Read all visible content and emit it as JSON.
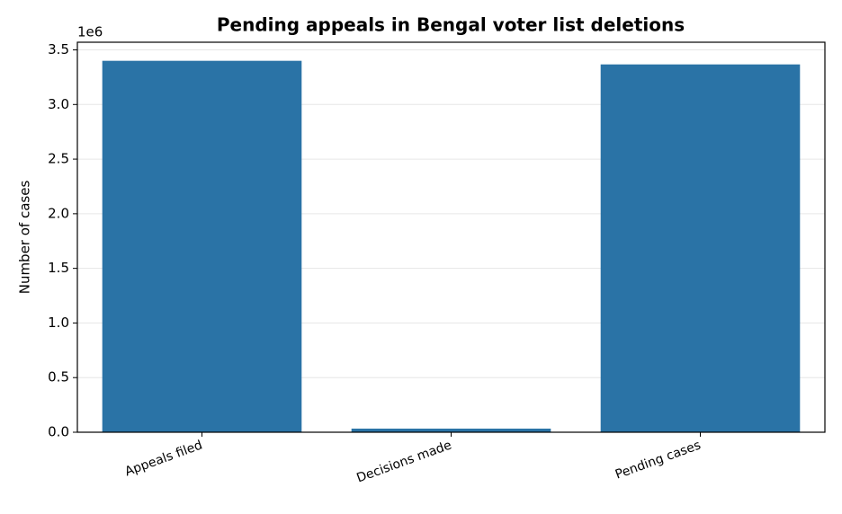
{
  "chart_data": {
    "type": "bar",
    "title": "Pending appeals in Bengal voter list deletions",
    "y_label": "Number of cases",
    "y_offset_label": "1e6",
    "categories": [
      "Appeals filed",
      "Decisions made",
      "Pending cases"
    ],
    "values": [
      3400000,
      33000,
      3367000
    ],
    "color": "#2a73a6",
    "ylim": [
      0,
      3570000
    ],
    "yticks": [
      {
        "value": 0,
        "label": "0.0"
      },
      {
        "value": 500000,
        "label": "0.5"
      },
      {
        "value": 1000000,
        "label": "1.0"
      },
      {
        "value": 1500000,
        "label": "1.5"
      },
      {
        "value": 2000000,
        "label": "2.0"
      },
      {
        "value": 2500000,
        "label": "2.5"
      },
      {
        "value": 3000000,
        "label": "3.0"
      },
      {
        "value": 3500000,
        "label": "3.5"
      }
    ],
    "grid": true
  }
}
